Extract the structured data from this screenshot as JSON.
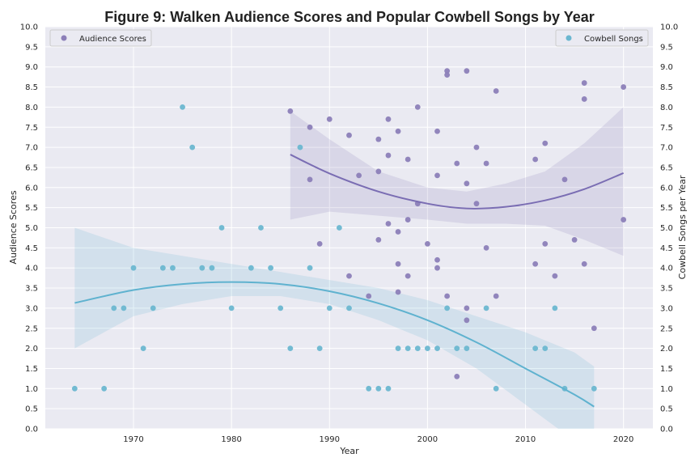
{
  "chart_data": {
    "type": "scatter",
    "title": "Figure 9: Walken Audience Scores and Popular Cowbell Songs by Year",
    "xlabel": "Year",
    "ylabel_left": "Audience Scores",
    "ylabel_right": "Cowbell Songs per Year",
    "xlim": [
      1961,
      2023
    ],
    "ylim": [
      0,
      10
    ],
    "x_ticks": [
      1970,
      1980,
      1990,
      2000,
      2010,
      2020
    ],
    "y_ticks": [
      "0.0",
      "0.5",
      "1.0",
      "1.5",
      "2.0",
      "2.5",
      "3.0",
      "3.5",
      "4.0",
      "4.5",
      "5.0",
      "5.5",
      "6.0",
      "6.5",
      "7.0",
      "7.5",
      "8.0",
      "8.5",
      "9.0",
      "9.5",
      "10.0"
    ],
    "grid": true,
    "series": [
      {
        "name": "Audience Scores",
        "color": "#8c7fb8",
        "legend": "top-left",
        "points": [
          [
            1986,
            7.9
          ],
          [
            1988,
            7.5
          ],
          [
            1988,
            6.2
          ],
          [
            1989,
            4.6
          ],
          [
            1990,
            7.7
          ],
          [
            1992,
            7.3
          ],
          [
            1992,
            3.8
          ],
          [
            1993,
            6.3
          ],
          [
            1994,
            3.3
          ],
          [
            1995,
            7.2
          ],
          [
            1995,
            6.4
          ],
          [
            1995,
            4.7
          ],
          [
            1996,
            7.7
          ],
          [
            1996,
            6.8
          ],
          [
            1996,
            5.1
          ],
          [
            1997,
            7.4
          ],
          [
            1997,
            4.9
          ],
          [
            1997,
            4.1
          ],
          [
            1997,
            3.4
          ],
          [
            1998,
            6.7
          ],
          [
            1998,
            5.2
          ],
          [
            1998,
            3.8
          ],
          [
            1999,
            8.0
          ],
          [
            1999,
            5.6
          ],
          [
            2000,
            4.6
          ],
          [
            2001,
            7.4
          ],
          [
            2001,
            6.3
          ],
          [
            2001,
            4.2
          ],
          [
            2001,
            4.0
          ],
          [
            2002,
            8.9
          ],
          [
            2002,
            8.8
          ],
          [
            2002,
            3.3
          ],
          [
            2003,
            6.6
          ],
          [
            2003,
            1.3
          ],
          [
            2004,
            8.9
          ],
          [
            2004,
            6.1
          ],
          [
            2004,
            3.0
          ],
          [
            2004,
            2.7
          ],
          [
            2005,
            7.0
          ],
          [
            2005,
            5.6
          ],
          [
            2006,
            6.6
          ],
          [
            2006,
            4.5
          ],
          [
            2007,
            8.4
          ],
          [
            2007,
            3.3
          ],
          [
            2011,
            6.7
          ],
          [
            2011,
            4.1
          ],
          [
            2012,
            7.1
          ],
          [
            2012,
            4.6
          ],
          [
            2013,
            3.8
          ],
          [
            2014,
            6.2
          ],
          [
            2015,
            4.7
          ],
          [
            2016,
            8.6
          ],
          [
            2016,
            8.2
          ],
          [
            2016,
            4.1
          ],
          [
            2017,
            2.5
          ],
          [
            2020,
            8.5
          ],
          [
            2020,
            5.2
          ]
        ],
        "trend": {
          "x": [
            1986,
            1990,
            1995,
            2000,
            2004,
            2008,
            2012,
            2016,
            2020
          ],
          "y": [
            6.82,
            6.35,
            5.9,
            5.6,
            5.48,
            5.52,
            5.68,
            5.96,
            6.36
          ],
          "ci_lower": [
            5.2,
            5.4,
            5.3,
            5.2,
            5.1,
            5.1,
            5.05,
            4.7,
            4.3
          ],
          "ci_upper": [
            7.9,
            7.2,
            6.4,
            6.0,
            5.9,
            6.1,
            6.4,
            7.1,
            8.0
          ]
        }
      },
      {
        "name": "Cowbell Songs",
        "color": "#6bb7d0",
        "legend": "top-right",
        "points": [
          [
            1964,
            1
          ],
          [
            1967,
            1
          ],
          [
            1968,
            3
          ],
          [
            1969,
            3
          ],
          [
            1970,
            4
          ],
          [
            1971,
            2
          ],
          [
            1972,
            3
          ],
          [
            1973,
            4
          ],
          [
            1974,
            4
          ],
          [
            1975,
            8
          ],
          [
            1976,
            7
          ],
          [
            1977,
            4
          ],
          [
            1978,
            4
          ],
          [
            1979,
            5
          ],
          [
            1980,
            3
          ],
          [
            1982,
            4
          ],
          [
            1983,
            5
          ],
          [
            1984,
            4
          ],
          [
            1985,
            3
          ],
          [
            1986,
            2
          ],
          [
            1987,
            7
          ],
          [
            1988,
            4
          ],
          [
            1989,
            2
          ],
          [
            1990,
            3
          ],
          [
            1991,
            5
          ],
          [
            1992,
            3
          ],
          [
            1994,
            1
          ],
          [
            1995,
            1
          ],
          [
            1996,
            1
          ],
          [
            1997,
            2
          ],
          [
            1998,
            2
          ],
          [
            1999,
            2
          ],
          [
            2000,
            2
          ],
          [
            2001,
            2
          ],
          [
            2002,
            3
          ],
          [
            2003,
            2
          ],
          [
            2004,
            2
          ],
          [
            2006,
            3
          ],
          [
            2007,
            1
          ],
          [
            2011,
            2
          ],
          [
            2012,
            2
          ],
          [
            2013,
            3
          ],
          [
            2014,
            1
          ],
          [
            2017,
            1
          ]
        ],
        "trend": {
          "x": [
            1964,
            1970,
            1975,
            1980,
            1985,
            1990,
            1995,
            2000,
            2005,
            2010,
            2015,
            2017
          ],
          "y": [
            3.13,
            3.45,
            3.6,
            3.65,
            3.6,
            3.42,
            3.12,
            2.7,
            2.15,
            1.5,
            0.85,
            0.55
          ],
          "ci_lower": [
            2.0,
            2.8,
            3.1,
            3.3,
            3.3,
            3.1,
            2.7,
            2.2,
            1.5,
            0.6,
            -0.3,
            -0.7
          ],
          "ci_upper": [
            5.0,
            4.5,
            4.3,
            4.1,
            3.9,
            3.7,
            3.5,
            3.2,
            2.8,
            2.4,
            1.9,
            1.55
          ]
        }
      }
    ]
  }
}
